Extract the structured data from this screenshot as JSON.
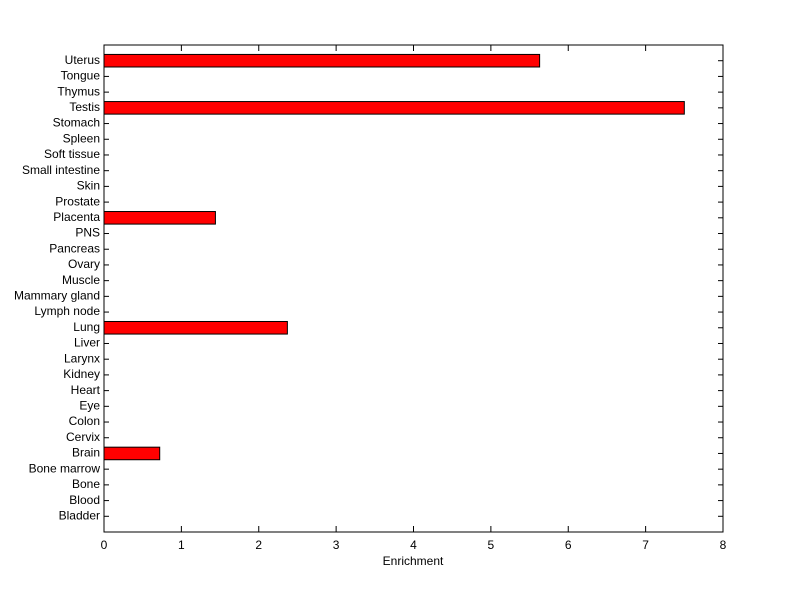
{
  "chart_data": {
    "type": "barh",
    "x_label": "Enrichment",
    "categories": [
      "Uterus",
      "Tongue",
      "Thymus",
      "Testis",
      "Stomach",
      "Spleen",
      "Soft tissue",
      "Small intestine",
      "Skin",
      "Prostate",
      "Placenta",
      "PNS",
      "Pancreas",
      "Ovary",
      "Muscle",
      "Mammary gland",
      "Lymph node",
      "Lung",
      "Liver",
      "Larynx",
      "Kidney",
      "Heart",
      "Eye",
      "Colon",
      "Cervix",
      "Brain",
      "Bone marrow",
      "Bone",
      "Blood",
      "Bladder"
    ],
    "values": [
      5.63,
      0,
      0,
      7.5,
      0,
      0,
      0,
      0,
      0,
      0,
      1.44,
      0,
      0,
      0,
      0,
      0,
      0,
      2.37,
      0,
      0,
      0,
      0,
      0,
      0,
      0,
      0.72,
      0,
      0,
      0,
      0
    ],
    "color": "#ff0000",
    "xlim": [
      0,
      8
    ],
    "xticks": [
      0,
      1,
      2,
      3,
      4,
      5,
      6,
      7,
      8
    ]
  }
}
